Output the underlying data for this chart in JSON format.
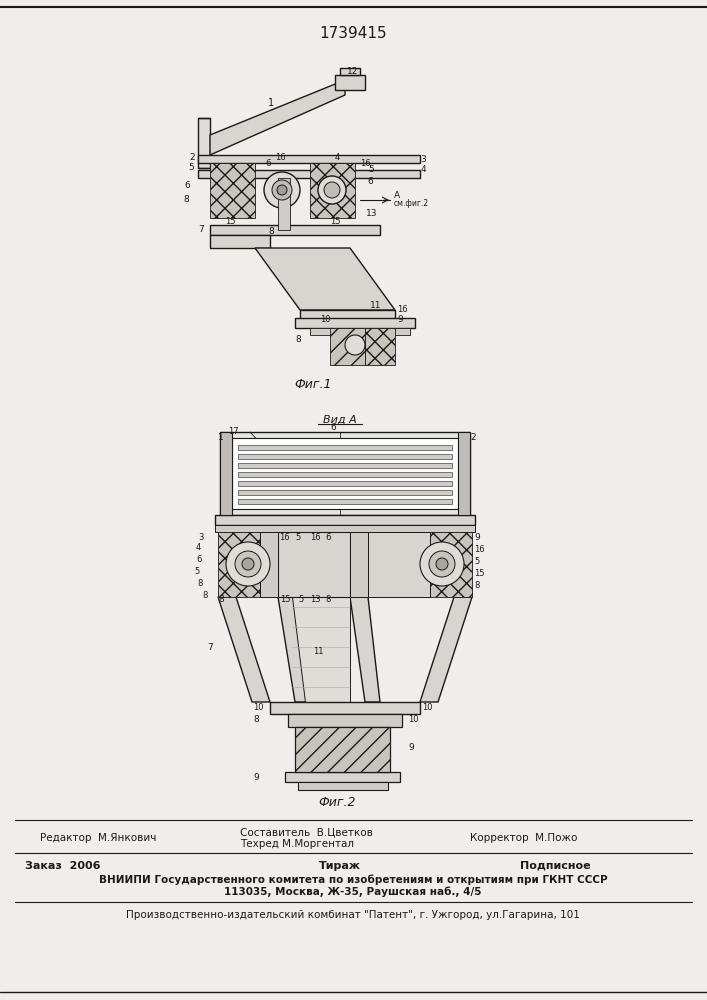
{
  "patent_number": "1739415",
  "background_color": "#f0eeea",
  "line_color": "#1a1a1a",
  "fig_width": 7.07,
  "fig_height": 10.0,
  "editor_line": "Редактор  М.Янкович",
  "composer_line1": "Составитель  В.Цветков",
  "composer_line2": "Техред М.Моргентал",
  "corrector_line": "Корректор  М.Пожо",
  "order_line": "Заказ  2006",
  "tirazh_line": "Тираж",
  "podpisnoe_line": "Подписное",
  "vniiipi_line1": "ВНИИПИ Государственного комитета по изобретениям и открытиям при ГКНТ СССР",
  "vniiipi_line2": "113035, Москва, Ж-35, Раушская наб., 4/5",
  "production_line": "Производственно-издательский комбинат \"Патент\", г. Ужгород, ул.Гагарина, 101",
  "fig1_label": "Фиг.1",
  "fig2_label": "Фиг.2",
  "fig2_view_label": "Вид А"
}
